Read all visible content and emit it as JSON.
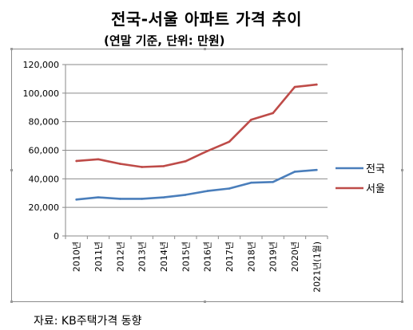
{
  "title": "전국-서울 아파트 가격 추이",
  "subtitle": "(연말 기준, 단위: 만원)",
  "source": "자료: KB주택가격 동향",
  "chart_data": {
    "type": "line",
    "title": "전국-서울 아파트 가격 추이",
    "subtitle": "(연말 기준, 단위: 만원)",
    "categories": [
      "2010년",
      "2011년",
      "2012년",
      "2013년",
      "2014년",
      "2015년",
      "2016년",
      "2017년",
      "2018년",
      "2019년",
      "2020년",
      "2021년(1월)"
    ],
    "series": [
      {
        "name": "전국",
        "color": "#4a7ebb",
        "values": [
          25500,
          27000,
          26000,
          26000,
          27000,
          28800,
          31500,
          33200,
          37300,
          37800,
          45000,
          46200
        ]
      },
      {
        "name": "서울",
        "color": "#be4b48",
        "values": [
          52500,
          53700,
          50500,
          48300,
          48900,
          52300,
          59500,
          66000,
          81300,
          86000,
          104300,
          106000
        ]
      }
    ],
    "ylim": [
      0,
      120000
    ],
    "yticks": [
      "0",
      "20,000",
      "40,000",
      "60,000",
      "80,000",
      "100,000",
      "120,000"
    ],
    "ytick_values": [
      0,
      20000,
      40000,
      60000,
      80000,
      100000,
      120000
    ],
    "grid": true,
    "legend": "right"
  }
}
